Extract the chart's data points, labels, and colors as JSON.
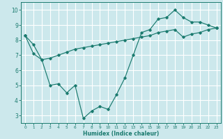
{
  "xlabel": "Humidex (Indice chaleur)",
  "bg_color": "#cce8ec",
  "grid_color": "#ffffff",
  "line_color": "#1a7a6e",
  "xlim": [
    -0.5,
    23.5
  ],
  "ylim": [
    2.5,
    10.5
  ],
  "xticks": [
    0,
    1,
    2,
    3,
    4,
    5,
    6,
    7,
    8,
    9,
    10,
    11,
    12,
    13,
    14,
    15,
    16,
    17,
    18,
    19,
    20,
    21,
    22,
    23
  ],
  "yticks": [
    3,
    4,
    5,
    6,
    7,
    8,
    9,
    10
  ],
  "line1_x": [
    0,
    1,
    2,
    3,
    4,
    5,
    6,
    7,
    8,
    9,
    10,
    11,
    12,
    13,
    14,
    15,
    16,
    17,
    18,
    19,
    20,
    21,
    22,
    23
  ],
  "line1_y": [
    8.3,
    7.1,
    6.7,
    5.0,
    5.1,
    4.5,
    5.0,
    2.8,
    3.3,
    3.6,
    3.4,
    4.4,
    5.5,
    7.0,
    8.5,
    8.7,
    9.4,
    9.5,
    10.0,
    9.5,
    9.2,
    9.2,
    9.0,
    8.8
  ],
  "line2_x": [
    0,
    1,
    2,
    3,
    4,
    5,
    6,
    7,
    8,
    9,
    10,
    11,
    12,
    13,
    14,
    15,
    16,
    17,
    18,
    19,
    20,
    21,
    22,
    23
  ],
  "line2_y": [
    8.3,
    7.7,
    6.7,
    6.8,
    7.0,
    7.2,
    7.4,
    7.5,
    7.6,
    7.7,
    7.8,
    7.9,
    8.0,
    8.1,
    8.2,
    8.3,
    8.5,
    8.6,
    8.7,
    8.2,
    8.4,
    8.5,
    8.7,
    8.8
  ]
}
